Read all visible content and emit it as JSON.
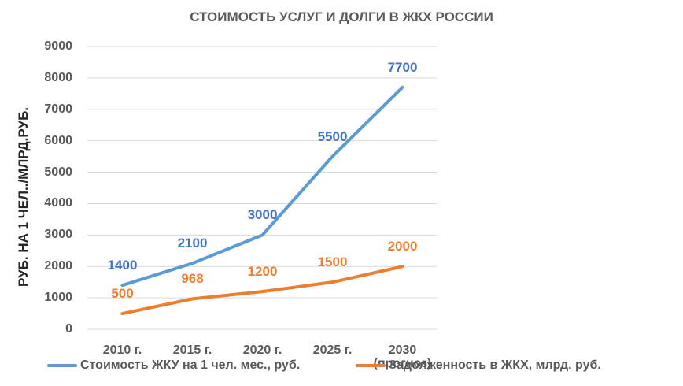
{
  "chart_data": {
    "type": "line",
    "title": "СТОИМОСТЬ УСЛУГ И ДОЛГИ В ЖКХ РОССИИ",
    "xlabel": "",
    "ylabel": "РУБ. НА 1 ЧЕЛ../МЛРД.РУБ.",
    "categories": [
      "2010 г.",
      "2015 г.",
      "2020 г.",
      "2025 г.",
      "2030 (прогноз)"
    ],
    "category_lines": [
      [
        "2010 г."
      ],
      [
        "2015 г."
      ],
      [
        "2020 г."
      ],
      [
        "2025 г."
      ],
      [
        "2030",
        "(прогноз)"
      ]
    ],
    "ylim": [
      0,
      9000
    ],
    "yticks": [
      0,
      1000,
      2000,
      3000,
      4000,
      5000,
      6000,
      7000,
      8000,
      9000
    ],
    "grid": true,
    "legend_position": "bottom",
    "series": [
      {
        "name": "Стоимость ЖКУ на 1 чел. мес., руб.",
        "color": "#5B9BD5",
        "label_color": "#4472C4",
        "values": [
          1400,
          2100,
          3000,
          5500,
          7700
        ]
      },
      {
        "name": "Задолженность в ЖКХ, млрд. руб.",
        "color": "#ED7D31",
        "label_color": "#ED7D31",
        "values": [
          500,
          968,
          1200,
          1500,
          2000
        ]
      }
    ],
    "data_labels": true
  },
  "colors": {
    "gridline": "#D9D9D9",
    "axis_text": "#595959",
    "ylabel_text": "#262626"
  }
}
